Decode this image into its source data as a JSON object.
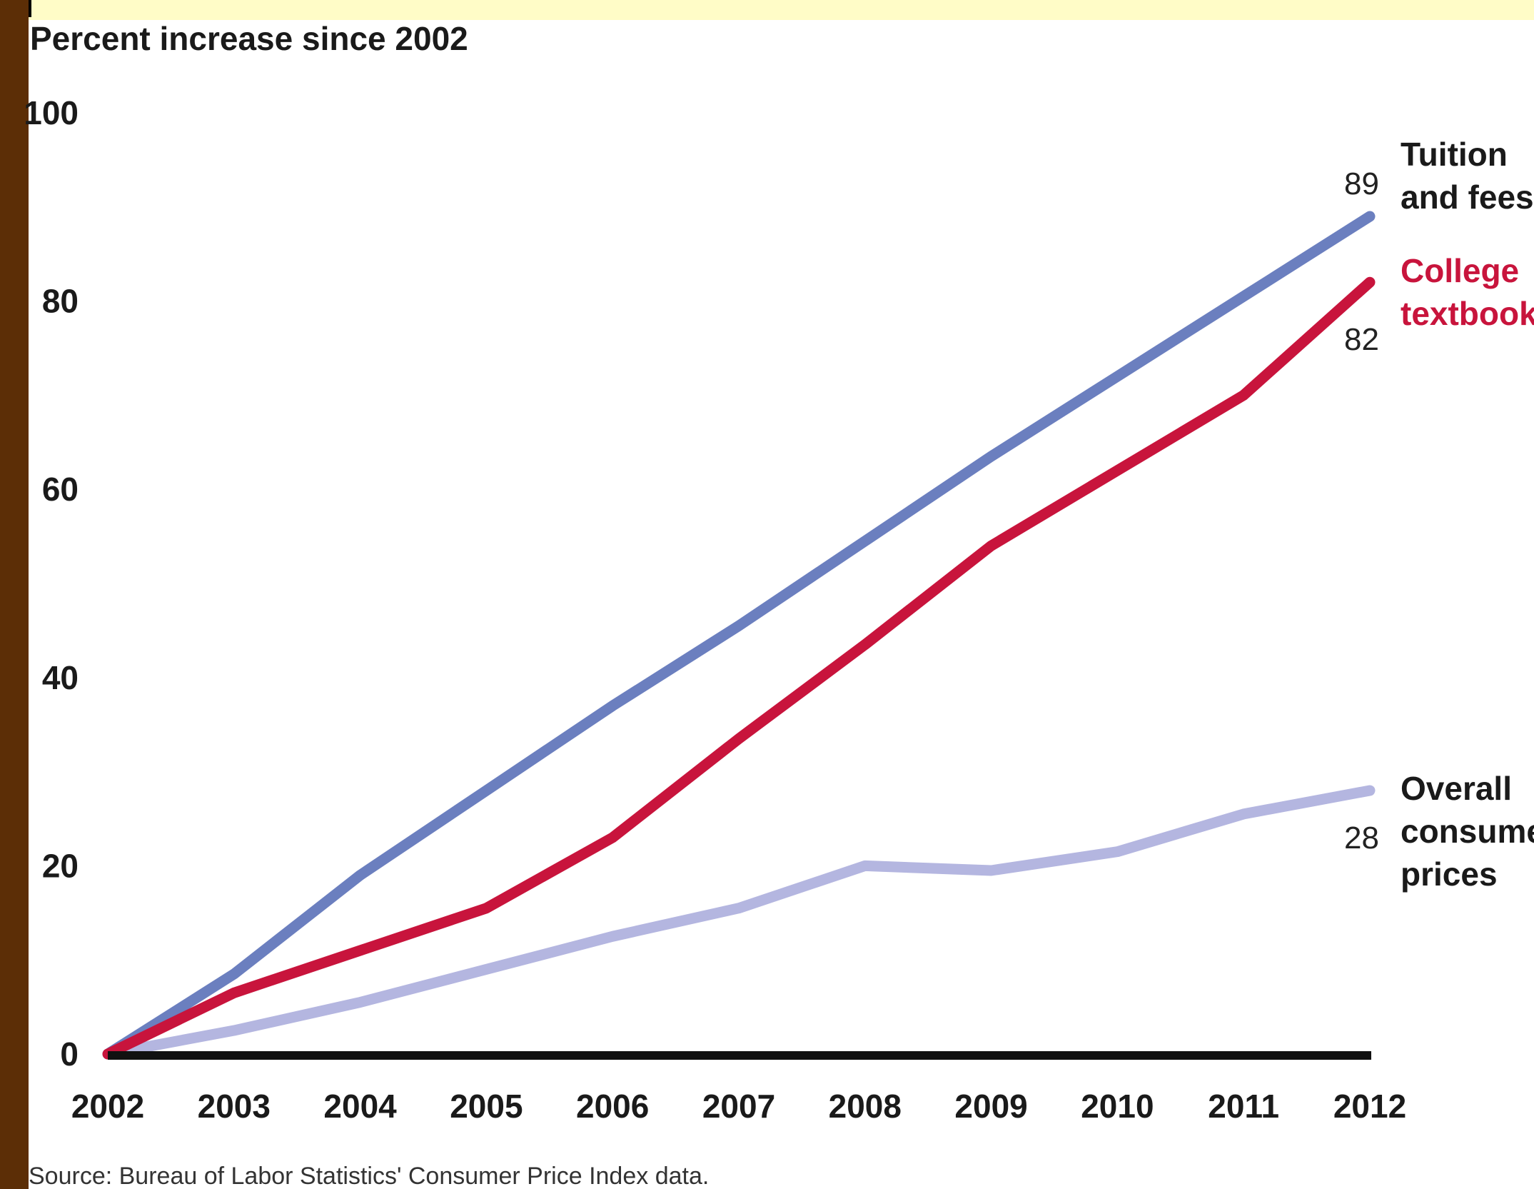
{
  "colors": {
    "tuition": "#6b7fbf",
    "textbooks": "#c8143c",
    "cpi": "#b4b6e0",
    "axis": "#111111",
    "left_bar": "#5c2e06",
    "top_strip": "#fffcc7"
  },
  "chart_data": {
    "type": "line",
    "title": "",
    "ylabel": "Percent increase since 2002",
    "xlabel": "",
    "x": [
      2002,
      2003,
      2004,
      2005,
      2006,
      2007,
      2008,
      2009,
      2010,
      2011,
      2012
    ],
    "x_tick_labels": [
      "2002",
      "2003",
      "2004",
      "2005",
      "2006",
      "2007",
      "2008",
      "2009",
      "2010",
      "2011",
      "2012"
    ],
    "y_ticks": [
      0,
      20,
      40,
      60,
      80,
      100
    ],
    "y_tick_labels": [
      "0",
      "20",
      "40",
      "60",
      "80",
      "100"
    ],
    "ylim": [
      0,
      100
    ],
    "grid": false,
    "series": [
      {
        "key": "tuition",
        "name_lines": [
          "Tuition",
          "and fees"
        ],
        "color": "#6b7fbf",
        "values": [
          0,
          8.5,
          19,
          28,
          37,
          45.5,
          54.5,
          63.5,
          72,
          80.5,
          89
        ],
        "end_label": "89"
      },
      {
        "key": "textbooks",
        "name_lines": [
          "College",
          "textbooks"
        ],
        "color": "#c8143c",
        "values": [
          0,
          6.5,
          11,
          15.5,
          23,
          33.5,
          43.5,
          54,
          62,
          70,
          82
        ],
        "end_label": "82"
      },
      {
        "key": "cpi",
        "name_lines": [
          "Overall",
          "consumer",
          "prices"
        ],
        "color": "#b4b6e0",
        "values": [
          0,
          2.5,
          5.5,
          9,
          12.5,
          15.5,
          20,
          19.5,
          21.5,
          25.5,
          28
        ],
        "end_label": "28"
      }
    ],
    "source": "Source: Bureau of Labor Statistics' Consumer Price Index data."
  }
}
